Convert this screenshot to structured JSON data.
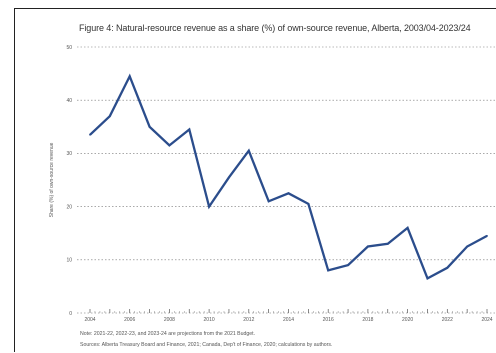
{
  "chart_data": {
    "type": "line",
    "title": "Figure 4: Natural-resource revenue as a share (%) of own-source revenue, Alberta, 2003/04-2023/24",
    "ylabel": "Share (%) of own-source revenue",
    "xlabel": "",
    "ylim": [
      0,
      50
    ],
    "yticks": [
      0,
      10,
      20,
      30,
      40,
      50
    ],
    "grid": "horizontal-dotted",
    "legend": "none",
    "line_color": "#2b4d8c",
    "x": [
      "2003/04",
      "2004/05",
      "2005/06",
      "2006/07",
      "2007/08",
      "2008/09",
      "2009/10",
      "2010/11",
      "2011/12",
      "2012/13",
      "2013/14",
      "2014/15",
      "2015/16",
      "2016/17",
      "2017/18",
      "2018/19",
      "2019/20",
      "2020/21",
      "2021/22",
      "2022/23",
      "2023/24"
    ],
    "xtick_labels": [
      "2004",
      "",
      "2006",
      "",
      "2008",
      "",
      "2010",
      "",
      "2012",
      "",
      "2014",
      "",
      "2016",
      "",
      "2018",
      "",
      "2020",
      "",
      "2022",
      "",
      "2024"
    ],
    "series": [
      {
        "values": [
          33.5,
          37,
          44.5,
          35,
          31.5,
          34.5,
          20,
          25.5,
          30.5,
          21,
          22.5,
          20.5,
          8,
          9,
          12.5,
          13,
          16,
          6.5,
          8.5,
          12.5,
          14.5
        ]
      }
    ]
  },
  "notes": [
    "Note: 2021-22, 2022-23, and 2023-24 are projections from the 2021 Budget.",
    "Sources: Alberta Treasury Board and Finance, 2021; Canada, Dep't of Finance, 2020; calculations by authors."
  ]
}
